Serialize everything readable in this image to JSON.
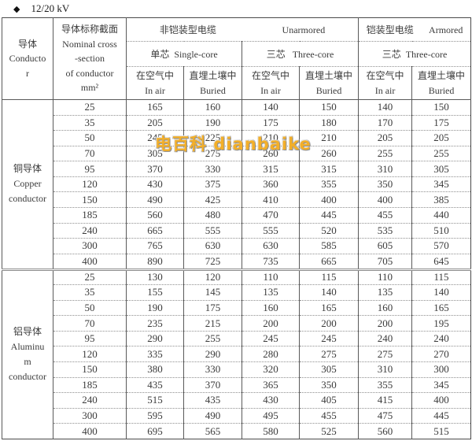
{
  "title": {
    "bullet": "◆",
    "text": "12/20 kV"
  },
  "watermark": {
    "text": "电百科 dianbaike",
    "color": "#F3AF29"
  },
  "table": {
    "header": {
      "conductor": "导体\nConducto\nr",
      "nominal": "导体标称截面\nNominal cross\n-section\nof conductor\nmm²",
      "unarmored_zh": "非铠装型电缆",
      "unarmored_en": "Unarmored",
      "armored_zh": "铠装型电缆",
      "armored_en": "Armored",
      "single_core_zh": "单芯",
      "single_core_en": "Single-core",
      "three_core_zh": "三芯",
      "three_core_en": "Three-core",
      "in_air": "在空气中\nIn air",
      "buried": "直埋土壤中\nBuried"
    },
    "columns": [
      "conductor",
      "nominal cross-section mm²",
      "single-core in air",
      "single-core buried",
      "three-core in air",
      "three-core buried",
      "armored three-core in air",
      "armored three-core buried"
    ],
    "sections": [
      {
        "name": "copper",
        "label": "铜导体\nCopper\nconductor",
        "rows": [
          [
            25,
            165,
            160,
            140,
            150,
            140,
            150
          ],
          [
            35,
            205,
            190,
            175,
            180,
            170,
            175
          ],
          [
            50,
            245,
            225,
            210,
            210,
            205,
            205
          ],
          [
            70,
            305,
            275,
            260,
            260,
            255,
            255
          ],
          [
            95,
            370,
            330,
            315,
            315,
            310,
            305
          ],
          [
            120,
            430,
            375,
            360,
            355,
            350,
            345
          ],
          [
            150,
            490,
            425,
            410,
            400,
            400,
            385
          ],
          [
            185,
            560,
            480,
            470,
            445,
            455,
            440
          ],
          [
            240,
            665,
            555,
            555,
            520,
            535,
            510
          ],
          [
            300,
            765,
            630,
            630,
            585,
            605,
            570
          ],
          [
            400,
            890,
            725,
            735,
            665,
            705,
            645
          ]
        ]
      },
      {
        "name": "aluminum",
        "label": "铝导体\nAluminu\nm\nconductor",
        "rows": [
          [
            25,
            130,
            120,
            110,
            115,
            110,
            115
          ],
          [
            35,
            155,
            145,
            135,
            140,
            135,
            140
          ],
          [
            50,
            190,
            175,
            160,
            165,
            160,
            165
          ],
          [
            70,
            235,
            215,
            200,
            200,
            200,
            195
          ],
          [
            95,
            290,
            255,
            245,
            245,
            240,
            240
          ],
          [
            120,
            335,
            290,
            280,
            275,
            275,
            270
          ],
          [
            150,
            380,
            330,
            320,
            305,
            310,
            300
          ],
          [
            185,
            435,
            370,
            365,
            350,
            355,
            345
          ],
          [
            240,
            515,
            435,
            430,
            405,
            415,
            400
          ],
          [
            300,
            595,
            490,
            495,
            455,
            475,
            445
          ],
          [
            400,
            695,
            565,
            580,
            525,
            560,
            515
          ]
        ]
      }
    ]
  }
}
